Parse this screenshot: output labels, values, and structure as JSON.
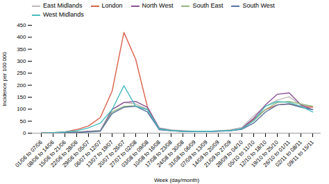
{
  "chart_data": {
    "type": "line",
    "xlabel": "Week (day/month)",
    "ylabel": "Incidence per 100 000",
    "categories": [
      "01/06 to 07/06",
      "08/06 to 14/06",
      "15/06 to 21/06",
      "22/06 to 28/06",
      "29/06 to 05/07",
      "06/07 to 12/07",
      "13/07 to 19/07",
      "20/07 to 26/07",
      "27/07 to 02/08",
      "03/08 to 09/08",
      "10/08 to 16/08",
      "17/08 to 23/08",
      "24/08 to 30/08",
      "31/08 to 06/09",
      "07/09 to 13/09",
      "14/09 to 20/09",
      "21/09 to 27/09",
      "28/09 to 04/10",
      "05/10 to 11/10",
      "12/10 to 18/10",
      "19/10 to 25/10",
      "26/10 to 01/11",
      "02/11 to 08/11",
      "09/11 to 15/11"
    ],
    "series": [
      {
        "name": "East Midlands",
        "color": "#c0b8b8",
        "values": [
          0,
          1,
          2,
          5,
          8,
          10,
          100,
          128,
          122,
          100,
          22,
          14,
          10,
          8,
          7,
          9,
          14,
          24,
          72,
          112,
          138,
          152,
          118,
          112
        ]
      },
      {
        "name": "London",
        "color": "#d9604a",
        "values": [
          0,
          2,
          5,
          15,
          30,
          65,
          175,
          420,
          308,
          108,
          18,
          10,
          8,
          7,
          7,
          9,
          11,
          18,
          58,
          98,
          118,
          122,
          112,
          108
        ]
      },
      {
        "name": "North West",
        "color": "#8b5096",
        "values": [
          0,
          1,
          2,
          4,
          7,
          10,
          98,
          128,
          132,
          108,
          20,
          12,
          9,
          7,
          7,
          9,
          11,
          20,
          62,
          118,
          162,
          168,
          118,
          98
        ]
      },
      {
        "name": "South East",
        "color": "#90b880",
        "values": [
          0,
          1,
          2,
          4,
          6,
          10,
          88,
          112,
          114,
          98,
          16,
          11,
          8,
          7,
          7,
          9,
          11,
          18,
          52,
          98,
          128,
          132,
          122,
          112
        ]
      },
      {
        "name": "South West",
        "color": "#5870a0",
        "values": [
          0,
          1,
          2,
          3,
          5,
          8,
          82,
          108,
          112,
          88,
          14,
          10,
          7,
          6,
          6,
          8,
          10,
          16,
          42,
          88,
          118,
          122,
          108,
          98
        ]
      },
      {
        "name": "West Midlands",
        "color": "#48bcc0",
        "values": [
          0,
          2,
          5,
          10,
          22,
          42,
          98,
          198,
          112,
          98,
          18,
          11,
          8,
          7,
          7,
          9,
          11,
          18,
          52,
          112,
          132,
          128,
          112,
          88
        ]
      }
    ],
    "ylim": [
      0,
      450
    ],
    "yticks": [
      0,
      50,
      100,
      150,
      200,
      250,
      300,
      350,
      400,
      450
    ],
    "grid": false,
    "legend": "upper left"
  }
}
